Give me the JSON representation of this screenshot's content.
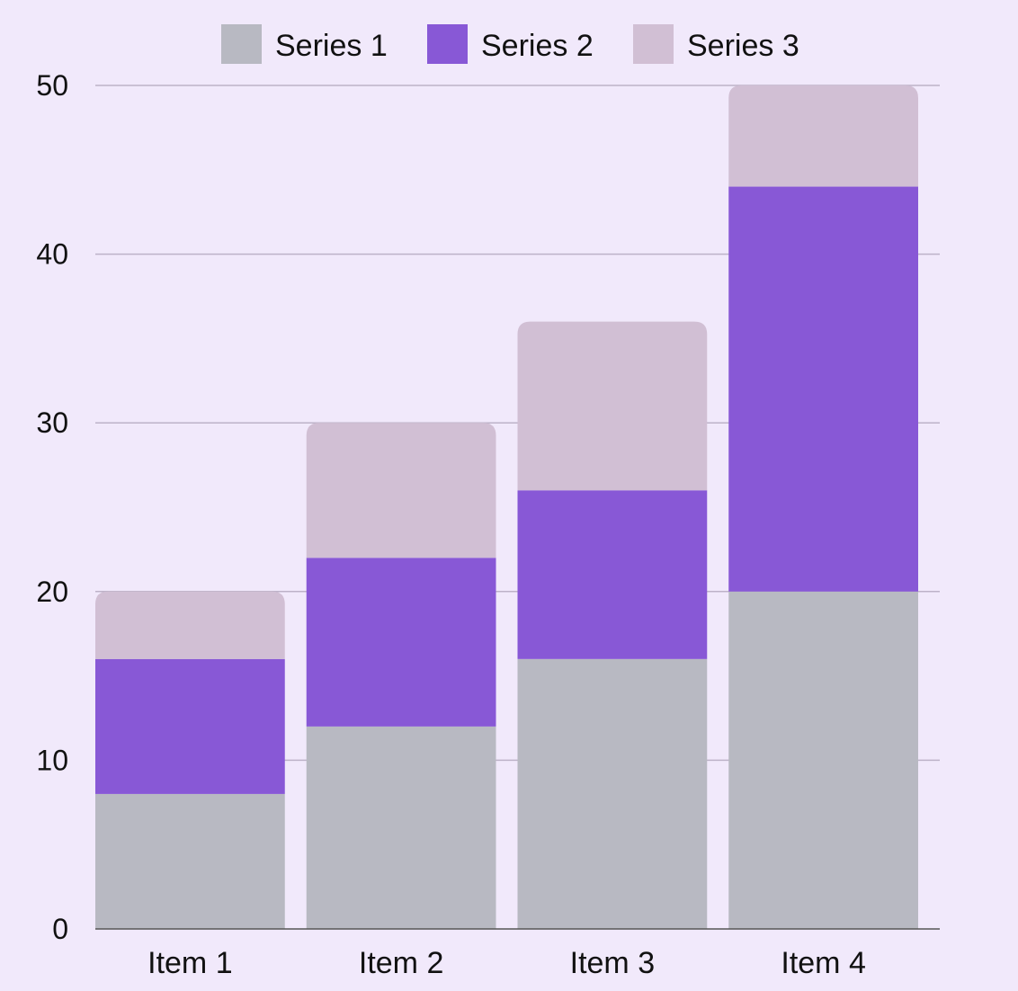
{
  "chart_data": {
    "type": "bar",
    "stacked": true,
    "categories": [
      "Item 1",
      "Item 2",
      "Item 3",
      "Item 4"
    ],
    "series": [
      {
        "name": "Series 1",
        "color": "#b8b9c2",
        "values": [
          8,
          12,
          16,
          20
        ]
      },
      {
        "name": "Series 2",
        "color": "#8858d6",
        "values": [
          8,
          10,
          10,
          24
        ]
      },
      {
        "name": "Series 3",
        "color": "#d1bfd4",
        "values": [
          4,
          8,
          10,
          6
        ]
      }
    ],
    "yticks": [
      "0",
      "10",
      "20",
      "30",
      "40",
      "50"
    ],
    "ylim": [
      0,
      50
    ],
    "grid": true,
    "legend_position": "top"
  }
}
